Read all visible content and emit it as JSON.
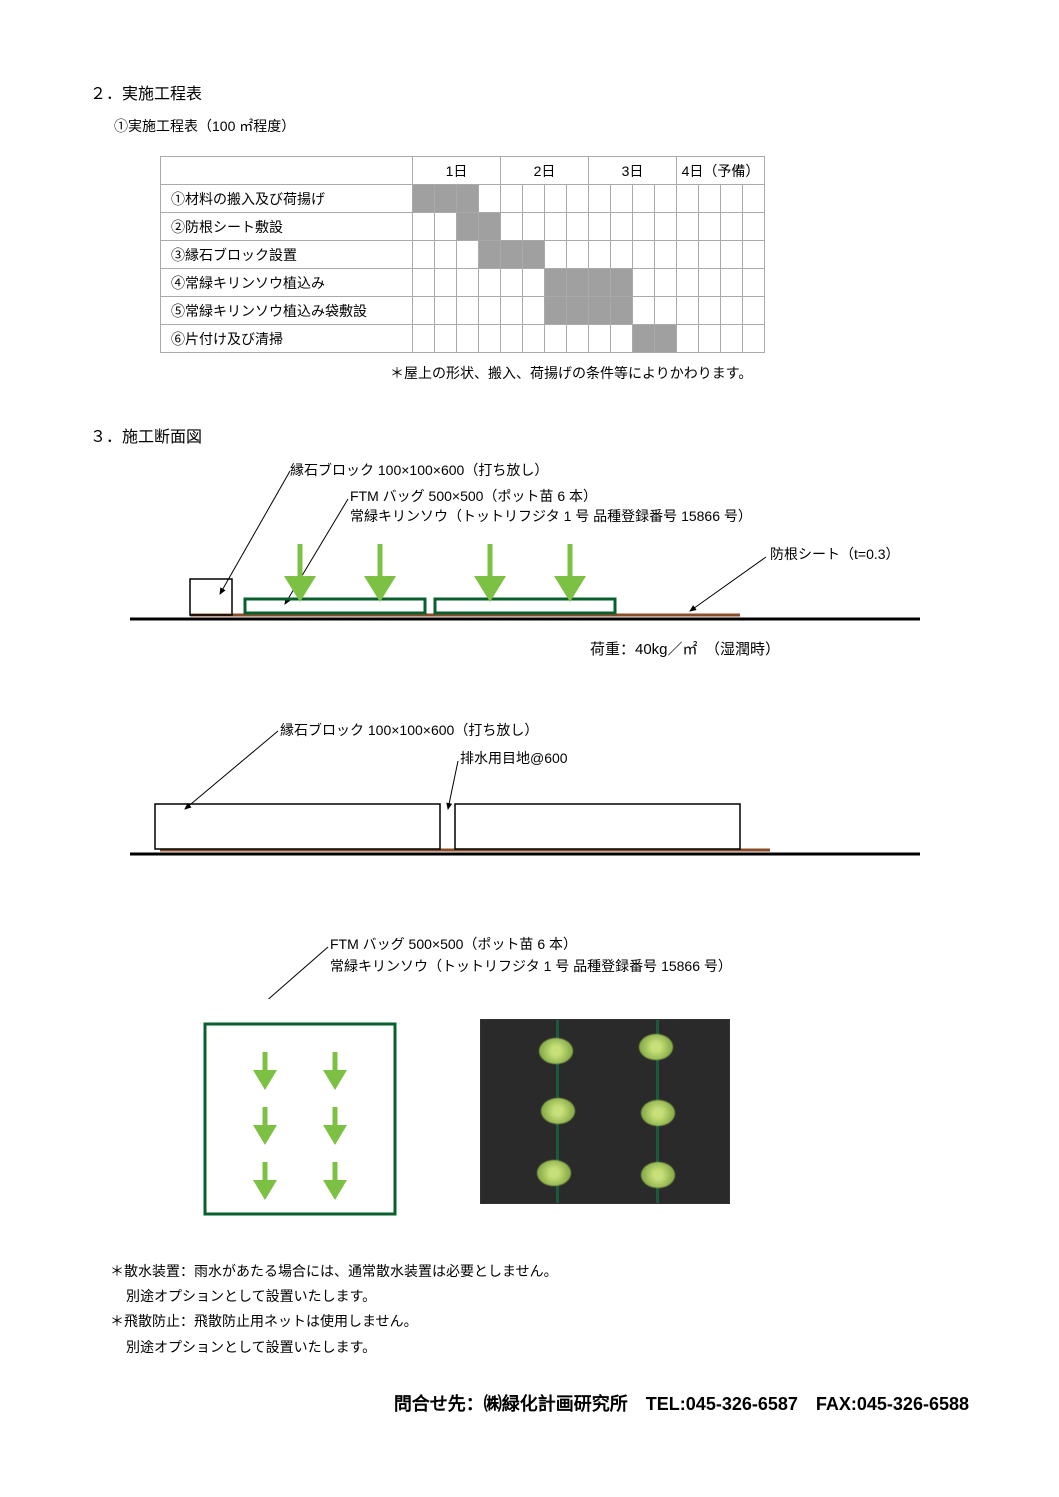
{
  "section2": {
    "title": "２．実施工程表",
    "subtitle": "①実施工程表（100 ㎡程度）",
    "days": [
      "1日",
      "2日",
      "3日",
      "4日（予備）"
    ],
    "slots_per_day": 4,
    "tasks": [
      {
        "label": "①材料の搬入及び荷揚げ",
        "start": 0,
        "end": 3
      },
      {
        "label": "②防根シート敷設",
        "start": 2,
        "end": 4
      },
      {
        "label": "③縁石ブロック設置",
        "start": 3,
        "end": 6
      },
      {
        "label": "④常緑キリンソウ植込み",
        "start": 6,
        "end": 10
      },
      {
        "label": "⑤常緑キリンソウ植込み袋敷設",
        "start": 6,
        "end": 10
      },
      {
        "label": "⑥片付け及び清掃",
        "start": 10,
        "end": 12
      }
    ],
    "note": "＊屋上の形状、搬入、荷揚げの条件等によりかわります。"
  },
  "section3": {
    "title": "３．施工断面図",
    "callout1": "縁石ブロック 100×100×600（打ち放し）",
    "callout2": "FTM バッグ 500×500（ポット苗 6 本）",
    "callout3": "常緑キリンソウ（トットリフジタ 1 号 品種登録番号 15866 号）",
    "callout4": "防根シート（t=0.3）",
    "load": "荷重：40kg／㎡　（湿潤時）",
    "callout5": "縁石ブロック 100×100×600（打ち放し）",
    "callout6": "排水用目地@600",
    "plan_callout1": "FTM バッグ 500×500（ポット苗 6 本）",
    "plan_callout2": "常緑キリンソウ（トットリフジタ 1 号 品種登録番号 15866 号）",
    "colors": {
      "green_arrow": "#7cc143",
      "bag_border": "#0a5f2f",
      "sheet": "#8b4c2a",
      "ground": "#000000",
      "bar_fill": "#a0a0a0"
    }
  },
  "notes": {
    "line1": "＊散水装置：雨水があたる場合には、通常散水装置は必要としません。",
    "line1b": "別途オプションとして設置いたします。",
    "line2": "＊飛散防止：飛散防止用ネットは使用しません。",
    "line2b": "別途オプションとして設置いたします。"
  },
  "footer": "問合せ先：㈱緑化計画研究所　TEL:045-326-6587　FAX:045-326-6588"
}
